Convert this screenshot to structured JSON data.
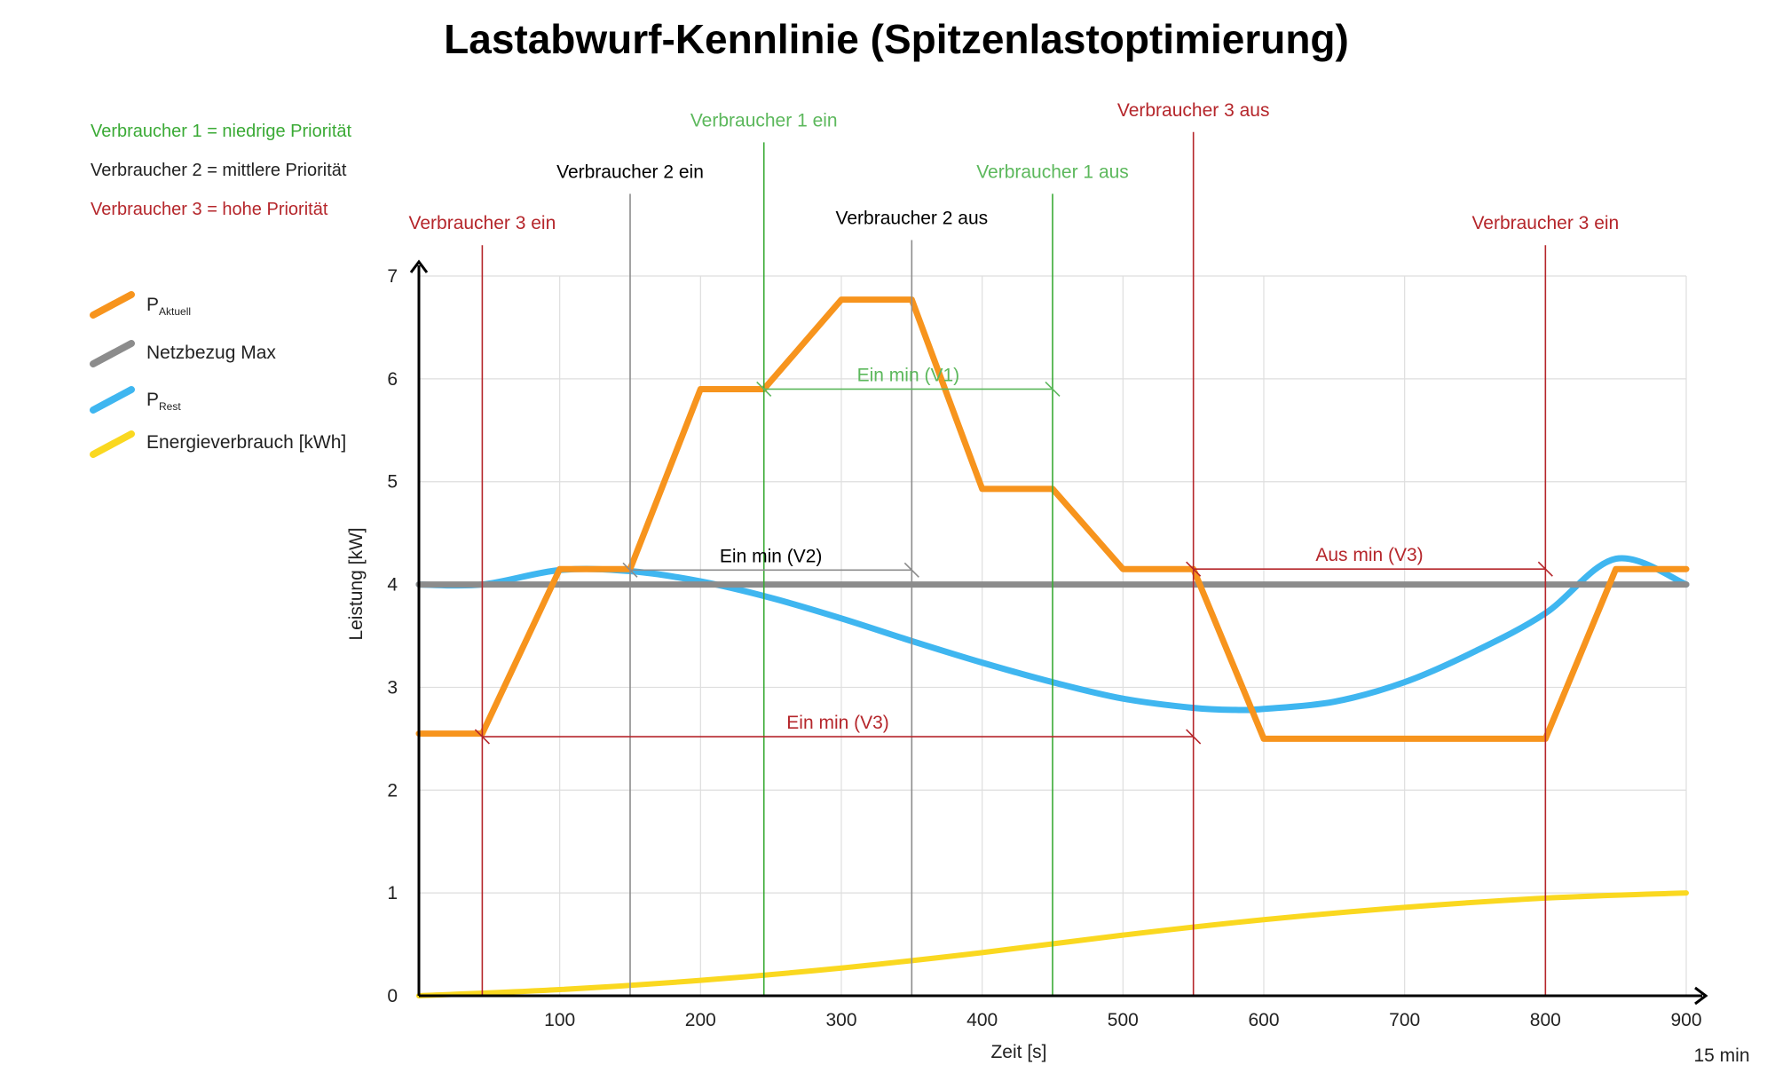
{
  "chart_data": {
    "type": "line",
    "title": "Lastabwurf-Kennlinie (Spitzenlastoptimierung)",
    "xlabel": "Zeit [s]",
    "ylabel": "Leistung [kW]",
    "x_end_label": "15 min",
    "xlim": [
      0,
      900
    ],
    "ylim": [
      0,
      7
    ],
    "x_ticks": [
      100,
      200,
      300,
      400,
      500,
      600,
      700,
      800,
      900
    ],
    "y_ticks": [
      0,
      1,
      2,
      3,
      4,
      5,
      6,
      7
    ],
    "grid": true,
    "priority_notes": [
      {
        "text": "Verbraucher 1 = niedrige Priorität",
        "color": "#3aaa35"
      },
      {
        "text": "Verbraucher 2 = mittlere Priorität",
        "color": "#222222"
      },
      {
        "text": "Verbraucher 3 = hohe Priorität",
        "color": "#b5262b"
      }
    ],
    "legend": [
      {
        "name": "P",
        "sub": "Aktuell",
        "color": "#f7941d"
      },
      {
        "name": "Netzbezug Max",
        "sub": "",
        "color": "#8c8c8c"
      },
      {
        "name": "P",
        "sub": "Rest",
        "color": "#3fb6f0"
      },
      {
        "name": "Energieverbrauch [kWh]",
        "sub": "",
        "color": "#fad820"
      }
    ],
    "series": [
      {
        "id": "p_aktuell",
        "color": "#f7941d",
        "x": [
          0,
          45,
          100,
          150,
          200,
          245,
          300,
          350,
          400,
          450,
          500,
          550,
          600,
          650,
          700,
          800,
          850,
          900
        ],
        "y": [
          2.55,
          2.55,
          4.15,
          4.15,
          5.9,
          5.9,
          6.77,
          6.77,
          4.93,
          4.93,
          4.15,
          4.15,
          2.5,
          2.5,
          2.5,
          2.5,
          4.15,
          4.15
        ]
      },
      {
        "id": "netzbezug_max",
        "color": "#8c8c8c",
        "x": [
          0,
          900
        ],
        "y": [
          4.0,
          4.0
        ]
      },
      {
        "id": "p_rest",
        "color": "#3fb6f0",
        "x": [
          0,
          45,
          100,
          150,
          200,
          250,
          300,
          350,
          400,
          450,
          500,
          550,
          580,
          600,
          650,
          700,
          750,
          800,
          850,
          900
        ],
        "y": [
          4.0,
          4.0,
          4.14,
          4.13,
          4.03,
          3.87,
          3.67,
          3.45,
          3.24,
          3.05,
          2.89,
          2.8,
          2.78,
          2.79,
          2.86,
          3.05,
          3.35,
          3.72,
          4.25,
          4.0
        ]
      },
      {
        "id": "energieverbrauch",
        "color": "#fad820",
        "x": [
          0,
          100,
          200,
          300,
          400,
          500,
          600,
          700,
          800,
          900
        ],
        "y": [
          0.0,
          0.06,
          0.15,
          0.27,
          0.42,
          0.59,
          0.74,
          0.86,
          0.95,
          1.0
        ]
      }
    ],
    "events": [
      {
        "label": "Verbraucher 3 ein",
        "x": 45,
        "top_y": 7.3,
        "color": "#b5262b"
      },
      {
        "label": "Verbraucher 2 ein",
        "x": 150,
        "top_y": 7.8,
        "color": "#8c8c8c",
        "label_color": "#000000"
      },
      {
        "label": "Verbraucher 1 ein",
        "x": 245,
        "top_y": 8.3,
        "color": "#3aaa35",
        "label_color": "#5cb85c"
      },
      {
        "label": "Verbraucher 2 aus",
        "x": 350,
        "top_y": 7.35,
        "color": "#8c8c8c",
        "label_color": "#000000"
      },
      {
        "label": "Verbraucher 1 aus",
        "x": 450,
        "top_y": 7.8,
        "color": "#3aaa35",
        "label_color": "#5cb85c"
      },
      {
        "label": "Verbraucher 3 aus",
        "x": 550,
        "top_y": 8.4,
        "color": "#b5262b"
      },
      {
        "label": "Verbraucher 3 ein",
        "x": 800,
        "top_y": 7.3,
        "color": "#b5262b"
      }
    ],
    "spans": [
      {
        "label": "Ein min (V1)",
        "x0": 245,
        "x1": 450,
        "y": 5.9,
        "color": "#5cb85c"
      },
      {
        "label": "Ein min (V2)",
        "x0": 150,
        "x1": 350,
        "y": 4.14,
        "color": "#8c8c8c",
        "label_color": "#000000"
      },
      {
        "label": "Aus min (V3)",
        "x0": 550,
        "x1": 800,
        "y": 4.15,
        "color": "#b5262b"
      },
      {
        "label": "Ein min (V3)",
        "x0": 45,
        "x1": 550,
        "y": 2.52,
        "color": "#b5262b"
      }
    ]
  }
}
